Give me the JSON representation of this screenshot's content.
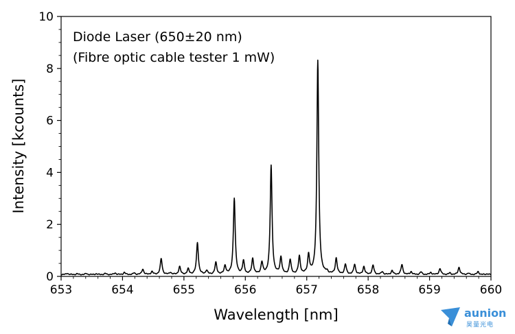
{
  "chart_data": {
    "type": "line",
    "xlabel": "Wavelength [nm]",
    "ylabel": "Intensity [kcounts]",
    "xlim": [
      653,
      660
    ],
    "ylim": [
      0,
      10
    ],
    "xticks": [
      "653",
      "654",
      "655",
      "656",
      "657",
      "658",
      "659",
      "660"
    ],
    "yticks": [
      "0",
      "2",
      "4",
      "6",
      "8",
      "10"
    ],
    "annotations": [
      "Diode Laser (650±20 nm)",
      "(Fibre optic cable tester 1 mW)"
    ],
    "grid": false,
    "line_color": "#000000",
    "series": [
      {
        "baseline": 0.07,
        "peaks": [
          {
            "x": 653.1,
            "y": 0.12
          },
          {
            "x": 653.26,
            "y": 0.1
          },
          {
            "x": 653.41,
            "y": 0.11
          },
          {
            "x": 653.57,
            "y": 0.1
          },
          {
            "x": 653.72,
            "y": 0.11
          },
          {
            "x": 653.88,
            "y": 0.13
          },
          {
            "x": 654.03,
            "y": 0.15
          },
          {
            "x": 654.19,
            "y": 0.13
          },
          {
            "x": 654.33,
            "y": 0.28
          },
          {
            "x": 654.48,
            "y": 0.18
          },
          {
            "x": 654.63,
            "y": 0.68
          },
          {
            "x": 654.78,
            "y": 0.15
          },
          {
            "x": 654.93,
            "y": 0.37
          },
          {
            "x": 655.07,
            "y": 0.28
          },
          {
            "x": 655.22,
            "y": 1.3
          },
          {
            "x": 655.37,
            "y": 0.22
          },
          {
            "x": 655.52,
            "y": 0.52
          },
          {
            "x": 655.67,
            "y": 0.4
          },
          {
            "x": 655.82,
            "y": 3.0
          },
          {
            "x": 655.97,
            "y": 0.57
          },
          {
            "x": 656.12,
            "y": 0.67
          },
          {
            "x": 656.27,
            "y": 0.52
          },
          {
            "x": 656.42,
            "y": 4.25
          },
          {
            "x": 656.58,
            "y": 0.72
          },
          {
            "x": 656.73,
            "y": 0.62
          },
          {
            "x": 656.88,
            "y": 0.75
          },
          {
            "x": 657.03,
            "y": 0.8
          },
          {
            "x": 657.18,
            "y": 8.3
          },
          {
            "x": 657.33,
            "y": 0.15
          },
          {
            "x": 657.48,
            "y": 0.68
          },
          {
            "x": 657.63,
            "y": 0.45
          },
          {
            "x": 657.78,
            "y": 0.45
          },
          {
            "x": 657.93,
            "y": 0.37
          },
          {
            "x": 658.08,
            "y": 0.42
          },
          {
            "x": 658.23,
            "y": 0.18
          },
          {
            "x": 658.39,
            "y": 0.22
          },
          {
            "x": 658.55,
            "y": 0.45
          },
          {
            "x": 658.7,
            "y": 0.18
          },
          {
            "x": 658.86,
            "y": 0.17
          },
          {
            "x": 659.02,
            "y": 0.15
          },
          {
            "x": 659.17,
            "y": 0.3
          },
          {
            "x": 659.33,
            "y": 0.13
          },
          {
            "x": 659.48,
            "y": 0.35
          },
          {
            "x": 659.63,
            "y": 0.12
          },
          {
            "x": 659.79,
            "y": 0.18
          },
          {
            "x": 659.94,
            "y": 0.1
          }
        ]
      }
    ]
  },
  "watermark": {
    "brand": "aunion",
    "sub": "昊量光电",
    "color": "#3a8fd8"
  }
}
